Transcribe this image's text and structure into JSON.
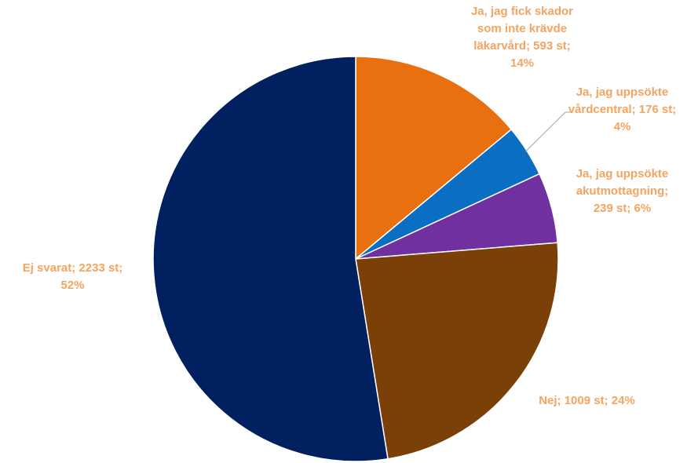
{
  "chart_data": {
    "type": "pie",
    "start_angle_deg": 0,
    "direction": "clockwise",
    "slices": [
      {
        "category": "Ja, jag fick skador som inte krävde läkarvård",
        "count": 593,
        "percent": 14,
        "color": "#e8700e",
        "label": {
          "lines": [
            "Ja, jag fick skador",
            "som inte krävde",
            "läkarvård; 593 st;",
            "14%"
          ]
        }
      },
      {
        "category": "Ja, jag uppsökte vårdcentral",
        "count": 176,
        "percent": 4,
        "color": "#0a6fc2",
        "label": {
          "lines": [
            "Ja, jag uppsökte",
            "vårdcentral; 176 st;",
            "4%"
          ]
        }
      },
      {
        "category": "Ja, jag uppsökte akutmottagning",
        "count": 239,
        "percent": 6,
        "color": "#7030a0",
        "label": {
          "lines": [
            "Ja, jag uppsökte",
            "akutmottagning;",
            "239 st; 6%"
          ]
        }
      },
      {
        "category": "Nej",
        "count": 1009,
        "percent": 24,
        "color": "#7b3f08",
        "label": {
          "lines": [
            "Nej; 1009 st; 24%"
          ]
        }
      },
      {
        "category": "Ej svarat",
        "count": 2233,
        "percent": 52,
        "color": "#002060",
        "label": {
          "lines": [
            "Ej svarat;  2233 st;",
            "52%"
          ]
        }
      }
    ],
    "label_color": "#f4a460",
    "legend": "none"
  }
}
